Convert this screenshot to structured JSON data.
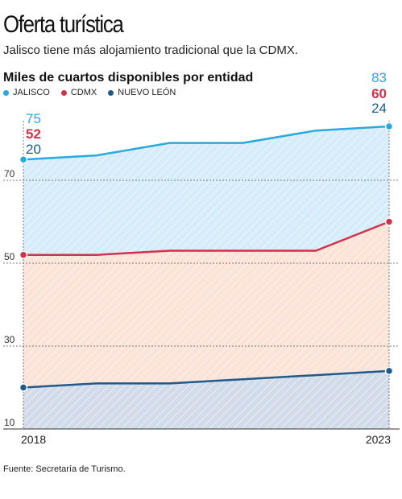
{
  "header": {
    "title": "Oferta turística",
    "subtitle": "Jalisco tiene más alojamiento tradicional que la CDMX.",
    "chart_title": "Miles de cuartos disponibles por entidad"
  },
  "source": "Fuente: Secretaría de Turismo.",
  "colors": {
    "jalisco": "#29a9e0",
    "cdmx": "#d2314a",
    "nuevo_leon": "#1e5a8a"
  },
  "chart_data": {
    "type": "area",
    "title": "Miles de cuartos disponibles por entidad",
    "xlabel": "",
    "ylabel": "",
    "x": [
      2018,
      2019,
      2020,
      2021,
      2022,
      2023
    ],
    "x_tick_labels": [
      "2018",
      "2023"
    ],
    "y_ticks": [
      10,
      30,
      50,
      70
    ],
    "ylim": [
      10,
      90
    ],
    "grid": true,
    "legend_position": "top-left",
    "series": [
      {
        "name": "JALISCO",
        "key": "jalisco",
        "values": [
          75,
          76,
          79,
          79,
          82,
          83
        ],
        "start_label": "75",
        "end_label": "83"
      },
      {
        "name": "CDMX",
        "key": "cdmx",
        "values": [
          52,
          52,
          53,
          53,
          53,
          60
        ],
        "start_label": "52",
        "end_label": "60"
      },
      {
        "name": "NUEVO LEÓN",
        "key": "nuevo_leon",
        "values": [
          20,
          21,
          21,
          22,
          23,
          24
        ],
        "start_label": "20",
        "end_label": "24"
      }
    ]
  }
}
